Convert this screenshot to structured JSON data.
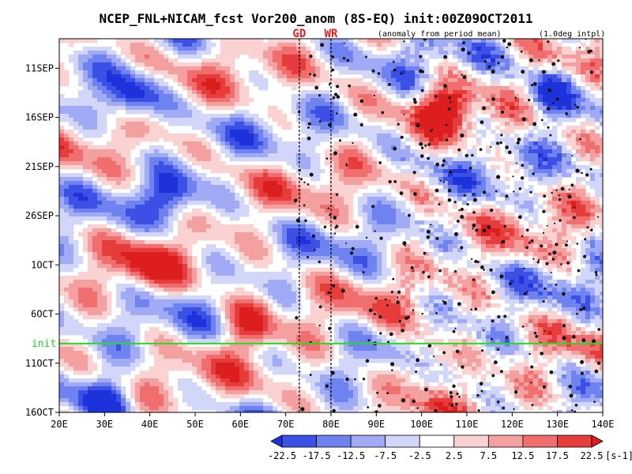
{
  "chart_data": {
    "type": "heatmap",
    "title": "NCEP_FNL+NICAM_fcst Vor200_anom (8S-EQ) init:00Z09OCT2011",
    "subtitle_left": "(anomaly from period mean)",
    "subtitle_right": "(1.0deg intpl)",
    "markers": [
      {
        "label": "GD",
        "lon": 73
      },
      {
        "label": "WR",
        "lon": 80
      }
    ],
    "xaxis": {
      "range": [
        20,
        140
      ],
      "ticks": [
        {
          "value": 20,
          "label": "20E"
        },
        {
          "value": 30,
          "label": "30E"
        },
        {
          "value": 40,
          "label": "40E"
        },
        {
          "value": 50,
          "label": "50E"
        },
        {
          "value": 60,
          "label": "60E"
        },
        {
          "value": 70,
          "label": "70E"
        },
        {
          "value": 80,
          "label": "80E"
        },
        {
          "value": 90,
          "label": "90E"
        },
        {
          "value": 100,
          "label": "100E"
        },
        {
          "value": 110,
          "label": "110E"
        },
        {
          "value": 120,
          "label": "120E"
        },
        {
          "value": 130,
          "label": "130E"
        },
        {
          "value": 140,
          "label": "140E"
        }
      ]
    },
    "yaxis": {
      "range": [
        "2011-09-08",
        "2011-10-16"
      ],
      "ticks": [
        {
          "value": "2011-09-11",
          "label": "11SEP"
        },
        {
          "value": "2011-09-16",
          "label": "16SEP"
        },
        {
          "value": "2011-09-21",
          "label": "21SEP"
        },
        {
          "value": "2011-09-26",
          "label": "26SEP"
        },
        {
          "value": "2011-10-01",
          "label": "1OCT"
        },
        {
          "value": "2011-10-06",
          "label": "6OCT"
        },
        {
          "value": "2011-10-11",
          "label": "11OCT"
        },
        {
          "value": "2011-10-16",
          "label": "16OCT"
        }
      ]
    },
    "init_line": {
      "label": "init",
      "date": "2011-10-09",
      "color": "#22dd22"
    },
    "colorbar": {
      "unit": "[s-1]",
      "boundaries": [
        "-22.5",
        "-17.5",
        "-12.5",
        "-7.5",
        "-2.5",
        "2.5",
        "7.5",
        "12.5",
        "17.5",
        "22.5"
      ],
      "colors": [
        "#1e32dc",
        "#3c50e6",
        "#6e82f0",
        "#a0aaf5",
        "#d2d7fa",
        "#ffffff",
        "#fad2d2",
        "#f5a0a0",
        "#f06e6e",
        "#e63c3c",
        "#dc1e1e"
      ]
    },
    "features": [
      {
        "kind": "negative",
        "lon": 36,
        "date": "2011-09-14",
        "strength": 1.0
      },
      {
        "kind": "negative",
        "lon": 45,
        "date": "2011-09-24",
        "strength": 0.8
      },
      {
        "kind": "negative",
        "lon": 30,
        "date": "2011-10-15",
        "strength": 1.0
      },
      {
        "kind": "positive",
        "lon": 105,
        "date": "2011-09-15",
        "strength": 0.9
      },
      {
        "kind": "positive",
        "lon": 40,
        "date": "2011-10-01",
        "strength": 0.7
      },
      {
        "kind": "positive",
        "lon": 62,
        "date": "2011-10-07",
        "strength": 0.9
      },
      {
        "kind": "negative",
        "lon": 128,
        "date": "2011-09-14",
        "strength": 0.8
      },
      {
        "kind": "positive",
        "lon": 100,
        "date": "2011-10-11",
        "strength": 0.8
      }
    ]
  }
}
